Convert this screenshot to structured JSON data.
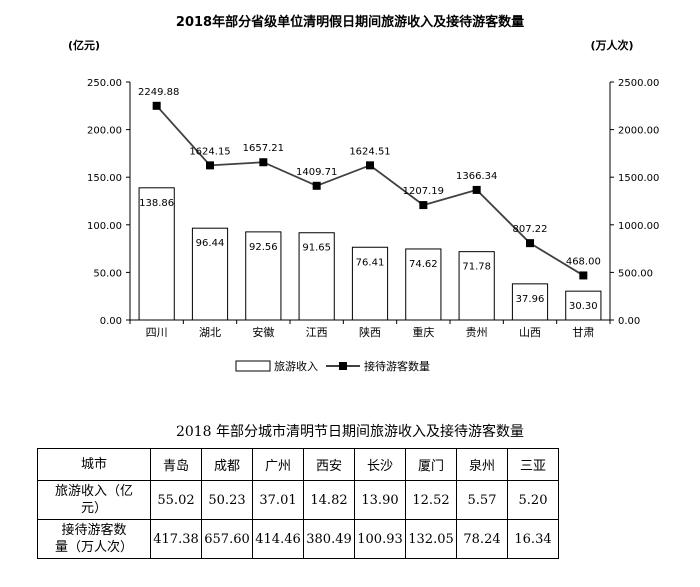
{
  "chart_data": {
    "type": "bar+line",
    "title": "2018年部分省级单位清明假日期间旅游收入及接待游客数量",
    "ylabel": "(亿元)",
    "y2label": "(万人次)",
    "categories": [
      "四川",
      "湖北",
      "安徽",
      "江西",
      "陕西",
      "重庆",
      "贵州",
      "山西",
      "甘肃"
    ],
    "ylim": [
      0,
      250
    ],
    "yticks": [
      "0.00",
      "50.00",
      "100.00",
      "150.00",
      "200.00",
      "250.00"
    ],
    "y2lim": [
      0,
      2500
    ],
    "y2ticks": [
      "0.00",
      "500.00",
      "1000.00",
      "1500.00",
      "2000.00",
      "2500.00"
    ],
    "series": [
      {
        "name": "旅游收入",
        "type": "bar",
        "axis": "left",
        "values": [
          138.86,
          96.44,
          92.56,
          91.65,
          76.41,
          74.62,
          71.78,
          37.96,
          30.3
        ],
        "labels": [
          "138.86",
          "96.44",
          "92.56",
          "91.65",
          "76.41",
          "74.62",
          "71.78",
          "37.96",
          "30.30"
        ]
      },
      {
        "name": "接待游客数量",
        "type": "line",
        "axis": "right",
        "values": [
          2249.88,
          1624.15,
          1657.21,
          1409.71,
          1624.51,
          1207.19,
          1366.34,
          807.22,
          468.0
        ],
        "labels": [
          "2249.88",
          "1624.15",
          "1657.21",
          "1409.71",
          "1624.51",
          "1207.19",
          "1366.34",
          "807.22",
          "468.00"
        ]
      }
    ],
    "grid": false,
    "legend_position": "bottom"
  },
  "table": {
    "title": "2018 年部分城市清明节日期间旅游收入及接待游客数量",
    "header_label": "城市",
    "cities": [
      "青岛",
      "成都",
      "广州",
      "西安",
      "长沙",
      "厦门",
      "泉州",
      "三亚"
    ],
    "rows": [
      {
        "label_line1": "旅游收入（亿",
        "label_line2": "元）",
        "values": [
          "55.02",
          "50.23",
          "37.01",
          "14.82",
          "13.90",
          "12.52",
          "5.57",
          "5.20"
        ]
      },
      {
        "label_line1": "接待游客数",
        "label_line2": "量（万人次）",
        "values": [
          "417.38",
          "657.60",
          "414.46",
          "380.49",
          "100.93",
          "132.05",
          "78.24",
          "16.34"
        ]
      }
    ]
  }
}
